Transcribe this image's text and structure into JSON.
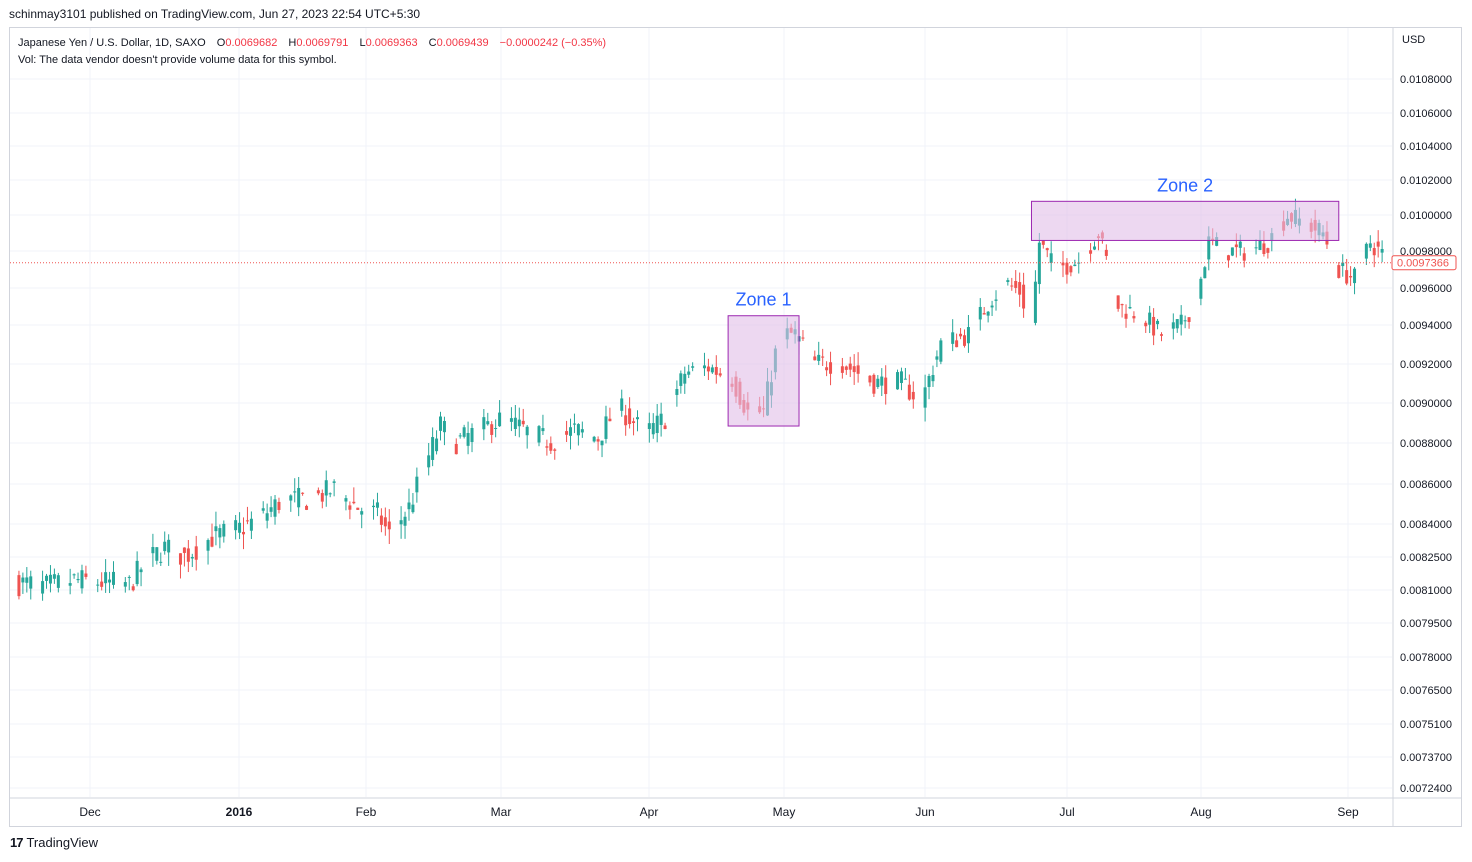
{
  "header": {
    "published_line": "schinmay3101 published on TradingView.com, Jun 27, 2023 22:54 UTC+5:30"
  },
  "legend": {
    "symbol": "Japanese Yen / U.S. Dollar, 1D, SAXO",
    "o_label": "O",
    "o_value": "0.0069682",
    "h_label": "H",
    "h_value": "0.0069791",
    "l_label": "L",
    "l_value": "0.0069363",
    "c_label": "C",
    "c_value": "0.0069439",
    "change": "−0.0000242 (−0.35%)",
    "vol_line": "Vol: The data vendor doesn't provide volume data for this symbol."
  },
  "currency_label": "USD",
  "footer": {
    "brand": "TradingView",
    "logo_glyph": "17"
  },
  "colors": {
    "up": "#26a69a",
    "down": "#ef5350",
    "zone_fill": "#e1bee7",
    "zone_border": "#9c27b0",
    "zone_text": "#2962ff",
    "grid": "#f0f3fa"
  },
  "chart_data": {
    "type": "candlestick",
    "price_axis_ticks": [
      "0.0108000",
      "0.0106000",
      "0.0104000",
      "0.0102000",
      "0.0100000",
      "0.0098000",
      "0.0096000",
      "0.0094000",
      "0.0092000",
      "0.0090000",
      "0.0088000",
      "0.0086000",
      "0.0084000",
      "0.0082500",
      "0.0081000",
      "0.0079500",
      "0.0078000",
      "0.0076500",
      "0.0075100",
      "0.0073700",
      "0.0072400"
    ],
    "time_axis_labels": [
      {
        "label": "Dec",
        "bold": false
      },
      {
        "label": "2016",
        "bold": true
      },
      {
        "label": "Feb",
        "bold": false
      },
      {
        "label": "Mar",
        "bold": false
      },
      {
        "label": "Apr",
        "bold": false
      },
      {
        "label": "May",
        "bold": false
      },
      {
        "label": "Jun",
        "bold": false
      },
      {
        "label": "Jul",
        "bold": false
      },
      {
        "label": "Aug",
        "bold": false
      },
      {
        "label": "Sep",
        "bold": false
      }
    ],
    "last_price": "0.0097366",
    "scale": "log",
    "grid": true,
    "annotations": [
      {
        "label": "Zone 1",
        "price_low": 0.00888,
        "price_high": 0.00945,
        "from_day": 181,
        "to_day": 199
      },
      {
        "label": "Zone 2",
        "price_low": 0.00986,
        "price_high": 0.01008,
        "from_day": 258,
        "to_day": 336
      }
    ],
    "anchors": [
      [
        0,
        0.00813
      ],
      [
        8,
        0.00811
      ],
      [
        15,
        0.00814
      ],
      [
        22,
        0.00813
      ],
      [
        29,
        0.00812
      ],
      [
        33,
        0.00822
      ],
      [
        38,
        0.00829
      ],
      [
        43,
        0.00825
      ],
      [
        50,
        0.00834
      ],
      [
        57,
        0.00838
      ],
      [
        62,
        0.00843
      ],
      [
        68,
        0.00852
      ],
      [
        75,
        0.00852
      ],
      [
        81,
        0.00857
      ],
      [
        87,
        0.00848
      ],
      [
        92,
        0.00845
      ],
      [
        95,
        0.00835
      ],
      [
        100,
        0.00848
      ],
      [
        104,
        0.00868
      ],
      [
        108,
        0.00888
      ],
      [
        112,
        0.0088
      ],
      [
        118,
        0.00886
      ],
      [
        124,
        0.00892
      ],
      [
        130,
        0.00885
      ],
      [
        136,
        0.0088
      ],
      [
        142,
        0.00886
      ],
      [
        148,
        0.00882
      ],
      [
        153,
        0.00898
      ],
      [
        160,
        0.00884
      ],
      [
        165,
        0.00892
      ],
      [
        170,
        0.00915
      ],
      [
        176,
        0.00918
      ],
      [
        182,
        0.00912
      ],
      [
        186,
        0.00895
      ],
      [
        190,
        0.00895
      ],
      [
        194,
        0.00935
      ],
      [
        198,
        0.00935
      ],
      [
        203,
        0.0092
      ],
      [
        210,
        0.0092
      ],
      [
        218,
        0.0091
      ],
      [
        225,
        0.0091
      ],
      [
        230,
        0.009
      ],
      [
        235,
        0.0093
      ],
      [
        242,
        0.00935
      ],
      [
        248,
        0.00955
      ],
      [
        252,
        0.00962
      ],
      [
        255,
        0.00958
      ],
      [
        258,
        0.0094
      ],
      [
        260,
        0.00985
      ],
      [
        264,
        0.0097
      ],
      [
        270,
        0.00975
      ],
      [
        275,
        0.0099
      ],
      [
        277,
        0.00975
      ],
      [
        280,
        0.0095
      ],
      [
        286,
        0.00945
      ],
      [
        291,
        0.00935
      ],
      [
        296,
        0.0094
      ],
      [
        300,
        0.00955
      ],
      [
        303,
        0.00985
      ],
      [
        308,
        0.0098
      ],
      [
        313,
        0.0098
      ],
      [
        318,
        0.00985
      ],
      [
        323,
        0.01
      ],
      [
        328,
        0.00995
      ],
      [
        332,
        0.0099
      ],
      [
        336,
        0.0097
      ],
      [
        340,
        0.00965
      ],
      [
        344,
        0.00985
      ],
      [
        349,
        0.00974
      ]
    ]
  }
}
